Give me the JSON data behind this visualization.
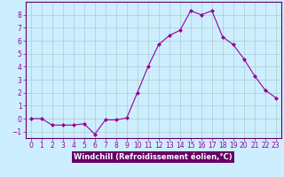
{
  "x": [
    0,
    1,
    2,
    3,
    4,
    5,
    6,
    7,
    8,
    9,
    10,
    11,
    12,
    13,
    14,
    15,
    16,
    17,
    18,
    19,
    20,
    21,
    22,
    23
  ],
  "y": [
    0,
    0,
    -0.5,
    -0.5,
    -0.5,
    -0.4,
    -1.2,
    -0.1,
    -0.1,
    0.05,
    2.0,
    4.0,
    5.7,
    6.4,
    6.8,
    8.3,
    8.0,
    8.3,
    6.3,
    5.7,
    4.6,
    3.3,
    2.2,
    1.6
  ],
  "line_color": "#990099",
  "marker": "D",
  "marker_size": 2,
  "bg_color": "#cceeff",
  "grid_color": "#aacccc",
  "xlim": [
    -0.5,
    23.5
  ],
  "ylim": [
    -1.5,
    9.0
  ],
  "yticks": [
    -1,
    0,
    1,
    2,
    3,
    4,
    5,
    6,
    7,
    8
  ],
  "xticks": [
    0,
    1,
    2,
    3,
    4,
    5,
    6,
    7,
    8,
    9,
    10,
    11,
    12,
    13,
    14,
    15,
    16,
    17,
    18,
    19,
    20,
    21,
    22,
    23
  ],
  "xlabel": "Windchill (Refroidissement éolien,°C)",
  "label_fontsize": 6.0,
  "tick_fontsize": 5.5,
  "axis_label_color": "#ffffff",
  "axis_bg_color": "#660066",
  "spine_color": "#660066"
}
